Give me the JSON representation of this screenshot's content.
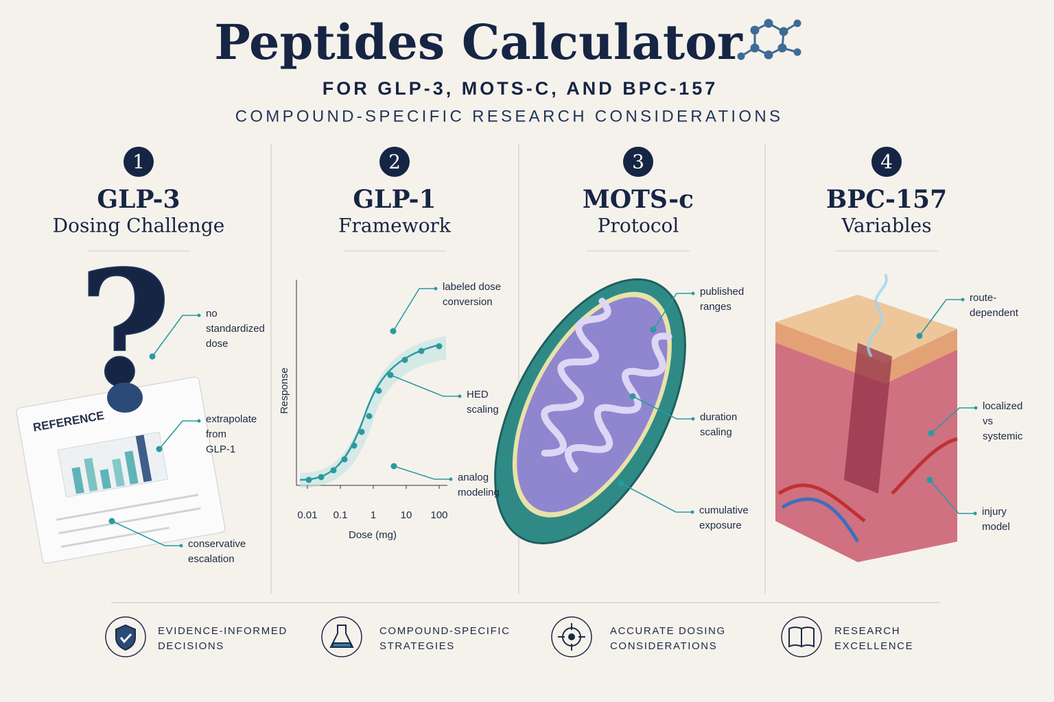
{
  "header": {
    "title": "Peptides Calculator",
    "subtitle": "FOR GLP-3, MOTS-C, AND BPC-157",
    "tagline": "COMPOUND-SPECIFIC RESEARCH CONSIDERATIONS"
  },
  "panels": [
    {
      "number": 1,
      "title": "GLP-3",
      "subtitle": "Dosing Challenge",
      "image_label": "REFERENCE",
      "callouts": [
        {
          "lines": [
            "no",
            "standardized",
            "dose"
          ]
        },
        {
          "lines": [
            "extrapolate",
            "from",
            "GLP-1"
          ]
        },
        {
          "lines": [
            "conservative",
            "escalation"
          ]
        }
      ]
    },
    {
      "number": 2,
      "title": "GLP-1",
      "subtitle": "Framework",
      "chart": {
        "y_label": "Response",
        "x_label": "Dose (mg)",
        "xticks": [
          0.01,
          0.1,
          1,
          10,
          100
        ],
        "log_x": true
      },
      "callouts": [
        {
          "lines": [
            "labeled dose",
            "conversion"
          ]
        },
        {
          "lines": [
            "HED",
            "scaling"
          ]
        },
        {
          "lines": [
            "analog",
            "modeling"
          ]
        }
      ]
    },
    {
      "number": 3,
      "title": "MOTS-c",
      "subtitle": "Protocol",
      "callouts": [
        {
          "lines": [
            "published",
            "ranges"
          ]
        },
        {
          "lines": [
            "duration",
            "scaling"
          ]
        },
        {
          "lines": [
            "cumulative",
            "exposure"
          ]
        }
      ]
    },
    {
      "number": 4,
      "title": "BPC-157",
      "subtitle": "Variables",
      "callouts": [
        {
          "lines": [
            "route-",
            "dependent"
          ]
        },
        {
          "lines": [
            "localized",
            "vs",
            "systemic"
          ]
        },
        {
          "lines": [
            "injury",
            "model"
          ]
        }
      ]
    }
  ],
  "footer": [
    {
      "lines": [
        "EVIDENCE-INFORMED",
        "DECISIONS"
      ]
    },
    {
      "lines": [
        "COMPOUND-SPECIFIC",
        "STRATEGIES"
      ]
    },
    {
      "lines": [
        "ACCURATE DOSING",
        "CONSIDERATIONS"
      ]
    },
    {
      "lines": [
        "RESEARCH",
        "EXCELLENCE"
      ]
    }
  ]
}
